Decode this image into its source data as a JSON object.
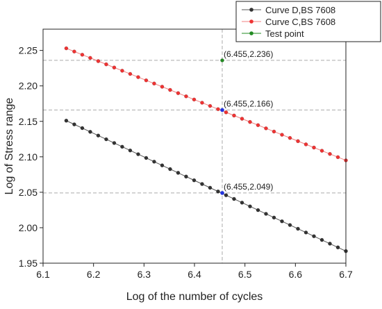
{
  "chart_data": {
    "type": "line",
    "xlabel": "Log of the number of cycles",
    "ylabel": "Log of Stress range",
    "xlim": [
      6.1,
      6.7
    ],
    "ylim": [
      1.95,
      2.28
    ],
    "x_ticks": [
      "6.1",
      "6.2",
      "6.3",
      "6.4",
      "6.5",
      "6.6",
      "6.7"
    ],
    "y_ticks": [
      "1.95",
      "2.00",
      "2.05",
      "2.10",
      "2.15",
      "2.20",
      "2.25"
    ],
    "x_tick_values": [
      6.1,
      6.2,
      6.3,
      6.4,
      6.5,
      6.6,
      6.7
    ],
    "y_tick_values": [
      1.95,
      2.0,
      2.05,
      2.1,
      2.15,
      2.2,
      2.25
    ],
    "legend_position": "top-right",
    "series": [
      {
        "name": "Curve D,BS 7608",
        "color": "#555555",
        "marker_color": "#333333",
        "x_start": 6.146,
        "x_end": 6.7,
        "y_start": 2.151,
        "y_end": 1.967,
        "point_count": 36
      },
      {
        "name": "Curve C,BS 7608",
        "color": "#f08080",
        "marker_color": "#ee3333",
        "x_start": 6.146,
        "x_end": 6.7,
        "y_start": 2.253,
        "y_end": 2.095,
        "point_count": 36
      },
      {
        "name": "Test point",
        "color": "#228b22",
        "marker_color": "#228b22",
        "points": [
          {
            "x": 6.455,
            "y": 2.236
          }
        ]
      }
    ],
    "highlight_points": [
      {
        "x": 6.455,
        "y": 2.166,
        "color": "#2233dd"
      },
      {
        "x": 6.455,
        "y": 2.049,
        "color": "#2233dd"
      }
    ],
    "reference_lines": {
      "vertical_x": 6.455,
      "horizontal_y": [
        2.236,
        2.166,
        2.049
      ]
    },
    "annotations": [
      {
        "text": "(6.455,2.236)",
        "x": 6.455,
        "y": 2.236
      },
      {
        "text": "(6.455,2.166)",
        "x": 6.455,
        "y": 2.166
      },
      {
        "text": "(6.455,2.049)",
        "x": 6.455,
        "y": 2.049
      }
    ]
  }
}
